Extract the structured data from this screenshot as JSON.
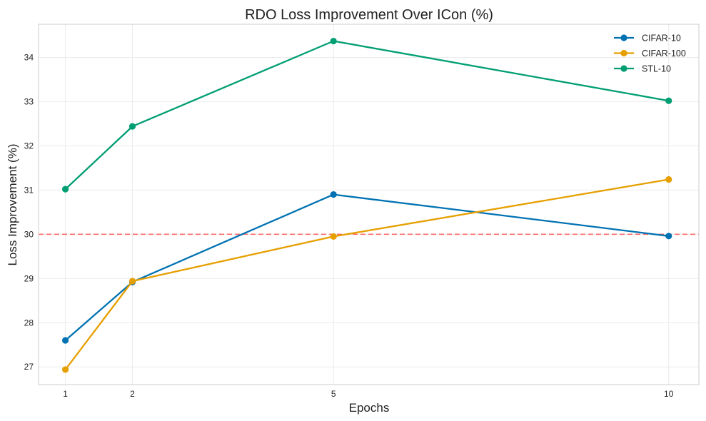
{
  "chart_data": {
    "type": "line",
    "title": "RDO Loss Improvement Over ICon (%)",
    "xlabel": "Epochs",
    "ylabel": "Loss Improvement (%)",
    "x": [
      1,
      2,
      5,
      10
    ],
    "x_ticks": [
      "1",
      "2",
      "5",
      "10"
    ],
    "y_ticks": [
      27,
      28,
      29,
      30,
      31,
      32,
      33,
      34
    ],
    "xlim": [
      0.6,
      10.45
    ],
    "ylim": [
      26.6,
      34.75
    ],
    "grid": true,
    "legend_position": "top-right",
    "series": [
      {
        "name": "CIFAR-10",
        "color": "#0072b2",
        "values": [
          27.6,
          28.92,
          30.9,
          29.96
        ]
      },
      {
        "name": "CIFAR-100",
        "color": "#e69f00",
        "values": [
          26.94,
          28.94,
          29.95,
          31.24
        ]
      },
      {
        "name": "STL-10",
        "color": "#009e73",
        "values": [
          31.02,
          32.44,
          34.37,
          33.02
        ]
      }
    ],
    "reference_line": {
      "y": 30,
      "color": "#ff6b6b",
      "style": "dashed"
    }
  }
}
